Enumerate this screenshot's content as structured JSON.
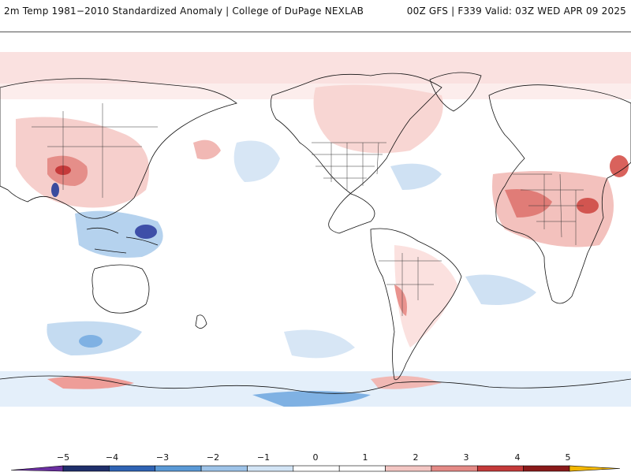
{
  "header": {
    "title_left": "2m Temp 1981−2010 Standardized Anomaly | College of DuPage NEXLAB",
    "title_right": "00Z GFS | F339 Valid: 03Z WED APR 09 2025"
  },
  "colorbar": {
    "tick_labels": [
      "−5",
      "−4",
      "−3",
      "−2",
      "−1",
      "0",
      "1",
      "2",
      "3",
      "4",
      "5"
    ],
    "segment_colors": [
      "#1f2f6b",
      "#2f63b4",
      "#5a99d6",
      "#9dc3e8",
      "#d2e4f5",
      "#ffffff",
      "#ffffff",
      "#f3c6c3",
      "#e48a86",
      "#c43a3a",
      "#8a1a1a"
    ],
    "low_end_color": "#6a2fa0",
    "high_end_color": "#f2b600"
  },
  "colors": {
    "warm_light": "#f8d8d6",
    "warm_mid": "#ee9d98",
    "warm_strong": "#cf3c3c",
    "cool_light": "#d7e6f5",
    "cool_mid": "#a9c9ec",
    "cool_strong": "#4f86c9",
    "coastline": "#111111",
    "border": "#333333"
  }
}
